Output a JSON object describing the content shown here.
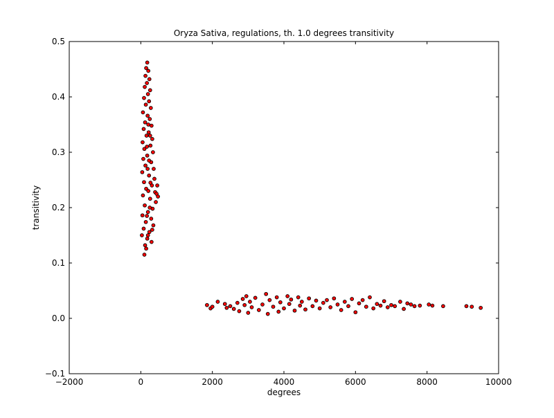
{
  "chart_data": {
    "type": "scatter",
    "title": "Oryza Sativa, regulations, th. 1.0 degrees transitivity",
    "xlabel": "degrees",
    "ylabel": "transitivity",
    "xlim": [
      -2000,
      10000
    ],
    "ylim": [
      -0.1,
      0.5
    ],
    "xticks": [
      -2000,
      0,
      2000,
      4000,
      6000,
      8000,
      10000
    ],
    "yticks": [
      -0.1,
      0.0,
      0.1,
      0.2,
      0.3,
      0.4,
      0.5
    ],
    "xtick_labels": [
      "−2000",
      "0",
      "2000",
      "4000",
      "6000",
      "8000",
      "10000"
    ],
    "ytick_labels": [
      "−0.1",
      "0.0",
      "0.1",
      "0.2",
      "0.3",
      "0.4",
      "0.5"
    ],
    "grid": false,
    "legend": "none",
    "marker_fill": "#ff0000",
    "marker_edge": "#000000",
    "series": [
      {
        "points": [
          [
            180,
            0.462
          ],
          [
            150,
            0.452
          ],
          [
            210,
            0.447
          ],
          [
            130,
            0.438
          ],
          [
            240,
            0.432
          ],
          [
            170,
            0.425
          ],
          [
            110,
            0.418
          ],
          [
            260,
            0.412
          ],
          [
            200,
            0.405
          ],
          [
            90,
            0.398
          ],
          [
            230,
            0.392
          ],
          [
            140,
            0.386
          ],
          [
            280,
            0.38
          ],
          [
            60,
            0.372
          ],
          [
            190,
            0.366
          ],
          [
            250,
            0.36
          ],
          [
            120,
            0.354
          ],
          [
            300,
            0.348
          ],
          [
            80,
            0.342
          ],
          [
            220,
            0.336
          ],
          [
            160,
            0.33
          ],
          [
            320,
            0.324
          ],
          [
            50,
            0.318
          ],
          [
            270,
            0.312
          ],
          [
            100,
            0.306
          ],
          [
            340,
            0.3
          ],
          [
            180,
            0.294
          ],
          [
            70,
            0.288
          ],
          [
            290,
            0.282
          ],
          [
            130,
            0.276
          ],
          [
            360,
            0.27
          ],
          [
            40,
            0.264
          ],
          [
            230,
            0.258
          ],
          [
            380,
            0.252
          ],
          [
            90,
            0.246
          ],
          [
            310,
            0.24
          ],
          [
            150,
            0.234
          ],
          [
            400,
            0.228
          ],
          [
            60,
            0.222
          ],
          [
            260,
            0.216
          ],
          [
            420,
            0.21
          ],
          [
            110,
            0.204
          ],
          [
            330,
            0.198
          ],
          [
            200,
            0.192
          ],
          [
            45,
            0.186
          ],
          [
            290,
            0.18
          ],
          [
            140,
            0.174
          ],
          [
            350,
            0.168
          ],
          [
            80,
            0.162
          ],
          [
            240,
            0.156
          ],
          [
            30,
            0.15
          ],
          [
            180,
            0.144
          ],
          [
            300,
            0.138
          ],
          [
            120,
            0.132
          ],
          [
            150,
            0.126
          ],
          [
            100,
            0.115
          ],
          [
            460,
            0.24
          ],
          [
            440,
            0.225
          ],
          [
            480,
            0.22
          ],
          [
            210,
            0.35
          ],
          [
            260,
            0.33
          ],
          [
            170,
            0.31
          ],
          [
            230,
            0.285
          ],
          [
            190,
            0.27
          ],
          [
            270,
            0.245
          ],
          [
            210,
            0.23
          ],
          [
            250,
            0.2
          ],
          [
            170,
            0.185
          ],
          [
            320,
            0.16
          ],
          [
            200,
            0.15
          ],
          [
            1850,
            0.024
          ],
          [
            1950,
            0.018
          ],
          [
            2000,
            0.021
          ],
          [
            2150,
            0.03
          ],
          [
            2350,
            0.026
          ],
          [
            2400,
            0.019
          ],
          [
            2500,
            0.022
          ],
          [
            2600,
            0.017
          ],
          [
            2700,
            0.028
          ],
          [
            2750,
            0.013
          ],
          [
            2850,
            0.035
          ],
          [
            2900,
            0.024
          ],
          [
            2950,
            0.04
          ],
          [
            3000,
            0.01
          ],
          [
            3050,
            0.03
          ],
          [
            3100,
            0.02
          ],
          [
            3200,
            0.037
          ],
          [
            3300,
            0.015
          ],
          [
            3400,
            0.025
          ],
          [
            3500,
            0.044
          ],
          [
            3550,
            0.008
          ],
          [
            3600,
            0.033
          ],
          [
            3700,
            0.021
          ],
          [
            3800,
            0.038
          ],
          [
            3850,
            0.012
          ],
          [
            3900,
            0.029
          ],
          [
            4000,
            0.018
          ],
          [
            4100,
            0.04
          ],
          [
            4150,
            0.026
          ],
          [
            4200,
            0.034
          ],
          [
            4300,
            0.014
          ],
          [
            4400,
            0.038
          ],
          [
            4450,
            0.023
          ],
          [
            4500,
            0.03
          ],
          [
            4600,
            0.016
          ],
          [
            4700,
            0.036
          ],
          [
            4800,
            0.022
          ],
          [
            4900,
            0.032
          ],
          [
            5000,
            0.018
          ],
          [
            5100,
            0.028
          ],
          [
            5200,
            0.033
          ],
          [
            5300,
            0.02
          ],
          [
            5400,
            0.036
          ],
          [
            5500,
            0.025
          ],
          [
            5600,
            0.015
          ],
          [
            5700,
            0.03
          ],
          [
            5800,
            0.022
          ],
          [
            5900,
            0.035
          ],
          [
            6000,
            0.011
          ],
          [
            6100,
            0.027
          ],
          [
            6200,
            0.033
          ],
          [
            6300,
            0.021
          ],
          [
            6400,
            0.038
          ],
          [
            6500,
            0.018
          ],
          [
            6600,
            0.026
          ],
          [
            6700,
            0.023
          ],
          [
            6800,
            0.031
          ],
          [
            6900,
            0.02
          ],
          [
            7000,
            0.024
          ],
          [
            7100,
            0.022
          ],
          [
            7250,
            0.03
          ],
          [
            7350,
            0.017
          ],
          [
            7450,
            0.027
          ],
          [
            7550,
            0.025
          ],
          [
            7650,
            0.022
          ],
          [
            7800,
            0.023
          ],
          [
            8050,
            0.025
          ],
          [
            8150,
            0.023
          ],
          [
            8450,
            0.022
          ],
          [
            9100,
            0.022
          ],
          [
            9250,
            0.021
          ],
          [
            9500,
            0.019
          ]
        ]
      }
    ]
  }
}
